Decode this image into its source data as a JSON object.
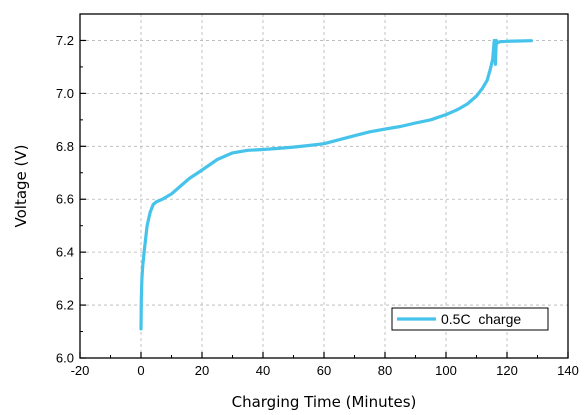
{
  "chart_data": {
    "type": "line",
    "xlabel": "Charging Time (Minutes)",
    "ylabel": "Voltage (V)",
    "xlim": [
      -20,
      140
    ],
    "ylim": [
      6.0,
      7.3
    ],
    "xticks": [
      -20,
      0,
      20,
      40,
      60,
      80,
      100,
      120,
      140
    ],
    "yticks": [
      6.0,
      6.2,
      6.4,
      6.6,
      6.8,
      7.0,
      7.2
    ],
    "x_tick_labels": [
      "-20",
      "0",
      "20",
      "40",
      "60",
      "80",
      "100",
      "120",
      "140"
    ],
    "y_tick_labels": [
      "6.0",
      "6.2",
      "6.4",
      "6.6",
      "6.8",
      "7.0",
      "7.2"
    ],
    "grid": true,
    "legend_position": "bottom-right",
    "series": [
      {
        "name": "0.5C  charge",
        "color": "#45c3ea",
        "x": [
          0,
          0.1,
          0.3,
          0.6,
          1,
          1.5,
          2,
          3,
          4,
          5,
          7,
          10,
          13,
          16,
          20,
          25,
          30,
          35,
          40,
          45,
          50,
          55,
          60,
          65,
          70,
          75,
          80,
          85,
          90,
          95,
          100,
          104,
          107,
          110,
          112,
          113.5,
          114.5,
          115.3,
          115.8,
          116.2,
          116.5,
          116.8,
          117.5,
          120,
          124,
          128
        ],
        "y": [
          6.11,
          6.22,
          6.3,
          6.35,
          6.4,
          6.45,
          6.5,
          6.55,
          6.58,
          6.59,
          6.6,
          6.62,
          6.65,
          6.68,
          6.71,
          6.75,
          6.775,
          6.785,
          6.788,
          6.792,
          6.797,
          6.803,
          6.81,
          6.825,
          6.84,
          6.855,
          6.865,
          6.875,
          6.888,
          6.9,
          6.92,
          6.94,
          6.96,
          6.99,
          7.02,
          7.05,
          7.09,
          7.13,
          7.2,
          7.11,
          7.2,
          7.19,
          7.195,
          7.197,
          7.198,
          7.199
        ]
      }
    ]
  }
}
